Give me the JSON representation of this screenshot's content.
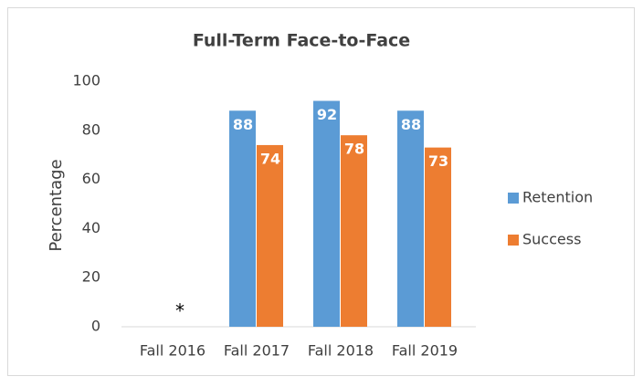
{
  "chart_data": {
    "type": "bar",
    "title": "Full-Term Face-to-Face",
    "y_label": "Percentage",
    "categories": [
      "Fall 2016",
      "Fall 2017",
      "Fall 2018",
      "Fall 2019"
    ],
    "series": [
      {
        "name": "Retention",
        "color": "#5b9bd5",
        "values": [
          null,
          88,
          92,
          88
        ]
      },
      {
        "name": "Success",
        "color": "#ed7d31",
        "values": [
          null,
          74,
          78,
          73
        ]
      }
    ],
    "annotation": "*",
    "ylim": [
      0,
      100
    ],
    "yticks": [
      0,
      20,
      40,
      60,
      80,
      100
    ],
    "grid": false,
    "legend": "right"
  }
}
